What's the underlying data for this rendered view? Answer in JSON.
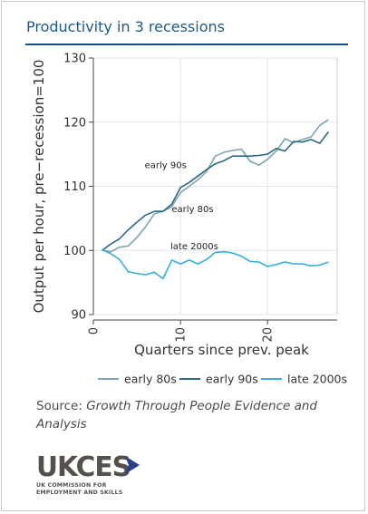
{
  "header": {
    "title": "Productivity in 3 recessions"
  },
  "colors": {
    "early_80s": "#7fa2b4",
    "early_90s": "#2c6a82",
    "late_2000s": "#37b0e0",
    "title": "#1b5a8a",
    "logo": "#54504c",
    "logo_arrow": "#2b3f8f"
  },
  "chart_data": {
    "type": "line",
    "title": "",
    "xlabel": "Quarters since prev. peak",
    "ylabel": "Output per hour, pre−recession=100",
    "xlim": [
      0,
      28
    ],
    "ylim": [
      90,
      130
    ],
    "xticks": [
      0,
      10,
      20
    ],
    "xtick_labels": [
      "0",
      "10",
      "20"
    ],
    "yticks": [
      90,
      100,
      110,
      120,
      130
    ],
    "ytick_labels": [
      "90",
      "100",
      "110",
      "120",
      "130"
    ],
    "grid": true,
    "legend": "bottom",
    "x": [
      1,
      2,
      3,
      4,
      5,
      6,
      7,
      8,
      9,
      10,
      11,
      12,
      13,
      14,
      15,
      16,
      17,
      18,
      19,
      20,
      21,
      22,
      23,
      24,
      25,
      26,
      27
    ],
    "series": [
      {
        "name": "early 80s",
        "color": "early_80s",
        "values": [
          100.0,
          99.8,
          100.5,
          100.7,
          102.0,
          103.7,
          105.7,
          106.1,
          106.8,
          109.0,
          110.0,
          111.0,
          112.3,
          114.7,
          115.3,
          115.6,
          115.8,
          113.9,
          113.3,
          114.2,
          115.5,
          117.4,
          116.8,
          117.3,
          117.7,
          119.5,
          120.4
        ]
      },
      {
        "name": "early 90s",
        "color": "early_90s",
        "values": [
          100.0,
          101.0,
          101.8,
          103.2,
          104.4,
          105.5,
          106.1,
          106.1,
          107.2,
          109.8,
          110.6,
          111.6,
          112.6,
          113.5,
          114.0,
          114.7,
          114.7,
          114.7,
          114.8,
          115.0,
          115.9,
          115.5,
          117.0,
          116.9,
          117.3,
          116.7,
          118.5
        ]
      },
      {
        "name": "late 2000s",
        "color": "late_2000s",
        "values": [
          100.1,
          99.5,
          98.6,
          96.7,
          96.4,
          96.2,
          96.6,
          95.6,
          98.5,
          97.9,
          98.5,
          97.9,
          98.6,
          99.7,
          99.8,
          99.6,
          99.1,
          98.3,
          98.2,
          97.5,
          97.8,
          98.2,
          97.9,
          97.9,
          97.6,
          97.7,
          98.2
        ]
      }
    ],
    "annotations": [
      {
        "text": "early 90s",
        "x": 8.3,
        "y": 112.8
      },
      {
        "text": "early 80s",
        "x": 11.4,
        "y": 106.0
      },
      {
        "text": "late 2000s",
        "x": 11.6,
        "y": 100.2
      }
    ]
  },
  "footer": {
    "source_prefix": "Source: ",
    "source_title": "Growth Through People Evidence and Analysis",
    "logo_text": "UKCES",
    "logo_subtitle_line1": "UK COMMISSION FOR",
    "logo_subtitle_line2": "EMPLOYMENT AND SKILLS"
  }
}
